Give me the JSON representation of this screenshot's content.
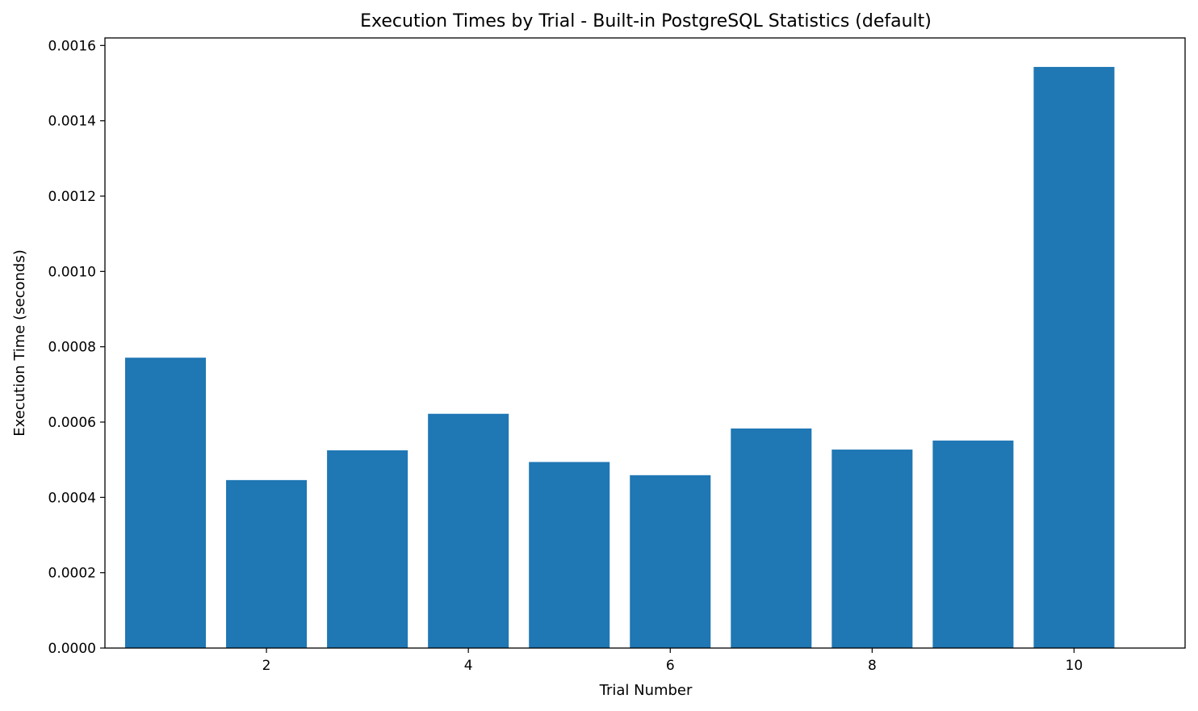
{
  "chart_data": {
    "type": "bar",
    "title": "Execution Times by Trial - Built-in PostgreSQL Statistics (default)",
    "xlabel": "Trial Number",
    "ylabel": "Execution Time (seconds)",
    "x": [
      1,
      2,
      3,
      4,
      5,
      6,
      7,
      8,
      9,
      10
    ],
    "values": [
      0.000771,
      0.000446,
      0.000525,
      0.000622,
      0.000494,
      0.000459,
      0.000583,
      0.000527,
      0.000551,
      0.001543
    ],
    "xlim": [
      0.4,
      11.1
    ],
    "ylim": [
      0,
      0.00162
    ],
    "xticks": [
      2,
      4,
      6,
      8,
      10
    ],
    "xtick_labels": [
      "2",
      "4",
      "6",
      "8",
      "10"
    ],
    "yticks": [
      0,
      0.0002,
      0.0004,
      0.0006,
      0.0008,
      0.001,
      0.0012,
      0.0014,
      0.0016
    ],
    "ytick_labels": [
      "0.0000",
      "0.0002",
      "0.0004",
      "0.0006",
      "0.0008",
      "0.0010",
      "0.0012",
      "0.0014",
      "0.0016"
    ],
    "bar_width": 0.8,
    "color": "#1f77b4",
    "grid": false,
    "legend": false
  }
}
